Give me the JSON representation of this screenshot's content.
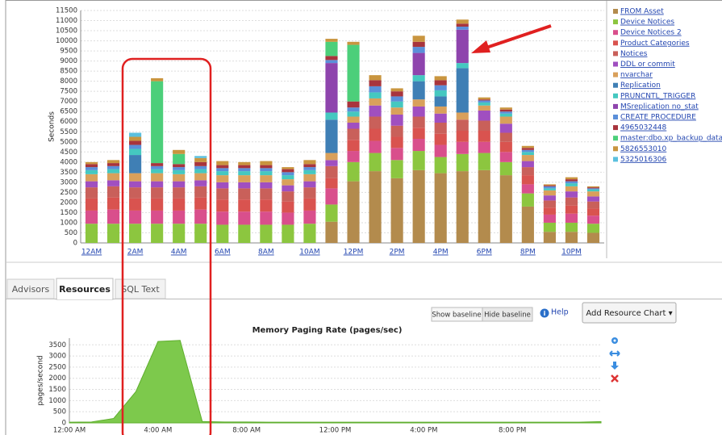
{
  "chart_data": [
    {
      "type": "bar",
      "stacked": true,
      "y_label": "Seconds",
      "categories": [
        "12AM",
        null,
        "2AM",
        null,
        "4AM",
        null,
        "6AM",
        null,
        "8AM",
        null,
        "10AM",
        null,
        "12PM",
        null,
        "2PM",
        null,
        "4PM",
        null,
        "6PM",
        null,
        "8PM",
        null,
        "10PM",
        null
      ],
      "ylim": [
        0,
        11500
      ],
      "yticks": [
        0,
        500,
        1000,
        1500,
        2000,
        2500,
        3000,
        3500,
        4000,
        4500,
        5000,
        5500,
        6000,
        6500,
        7000,
        7500,
        8000,
        8500,
        9000,
        9500,
        10000,
        10500,
        11000,
        11500
      ],
      "grid": true,
      "legend": "right",
      "series": [
        {
          "name": "FROM Asset",
          "color": "#b38b4d",
          "values": [
            0,
            0,
            0,
            0,
            0,
            0,
            0,
            0,
            0,
            0,
            0,
            1050,
            3050,
            3550,
            3200,
            3600,
            3450,
            3550,
            3600,
            3350,
            1800,
            550,
            550,
            500
          ]
        },
        {
          "name": "Device Notices",
          "color": "#8cc63f",
          "values": [
            950,
            950,
            950,
            950,
            950,
            950,
            900,
            900,
            900,
            900,
            950,
            850,
            950,
            900,
            900,
            950,
            800,
            850,
            850,
            650,
            650,
            450,
            450,
            450
          ]
        },
        {
          "name": "Device Notices 2",
          "color": "#d94f8c",
          "values": [
            650,
            700,
            650,
            650,
            650,
            700,
            650,
            650,
            650,
            600,
            650,
            800,
            550,
            600,
            600,
            600,
            600,
            600,
            550,
            500,
            450,
            400,
            450,
            400
          ]
        },
        {
          "name": "Product Categories",
          "color": "#d9534f",
          "values": [
            600,
            600,
            600,
            600,
            600,
            600,
            600,
            600,
            600,
            550,
            600,
            500,
            550,
            600,
            550,
            550,
            550,
            550,
            550,
            500,
            450,
            350,
            400,
            350
          ]
        },
        {
          "name": "Notices",
          "color": "#c9605a",
          "values": [
            550,
            550,
            550,
            550,
            550,
            550,
            550,
            550,
            550,
            500,
            550,
            600,
            550,
            600,
            550,
            550,
            550,
            550,
            500,
            450,
            400,
            350,
            400,
            350
          ]
        },
        {
          "name": "DDL or commit",
          "color": "#a04fc0",
          "values": [
            300,
            300,
            300,
            300,
            300,
            300,
            300,
            300,
            300,
            300,
            300,
            300,
            300,
            550,
            550,
            500,
            450,
            0,
            500,
            450,
            300,
            250,
            300,
            250
          ]
        },
        {
          "name": "nvarchar",
          "color": "#d9a05b",
          "values": [
            350,
            350,
            400,
            400,
            350,
            350,
            350,
            350,
            350,
            300,
            350,
            350,
            300,
            350,
            350,
            350,
            350,
            350,
            250,
            350,
            300,
            250,
            250,
            250
          ]
        },
        {
          "name": "Replication",
          "color": "#3f7fb5",
          "values": [
            0,
            0,
            900,
            0,
            0,
            0,
            0,
            0,
            0,
            0,
            0,
            1650,
            0,
            0,
            0,
            900,
            500,
            2200,
            0,
            0,
            0,
            0,
            0,
            0
          ]
        },
        {
          "name": "PRUNCNTL_TRIGGER",
          "color": "#45c8c0",
          "values": [
            200,
            200,
            300,
            200,
            200,
            200,
            200,
            200,
            200,
            200,
            200,
            350,
            250,
            300,
            300,
            300,
            300,
            250,
            150,
            150,
            150,
            100,
            150,
            100
          ]
        },
        {
          "name": "MSreplication no_stat",
          "color": "#8e44ad",
          "values": [
            0,
            0,
            0,
            0,
            0,
            0,
            0,
            0,
            0,
            0,
            0,
            2450,
            0,
            0,
            0,
            1100,
            0,
            1650,
            0,
            0,
            0,
            0,
            0,
            0
          ]
        },
        {
          "name": "CREATE PROCEDURE",
          "color": "#5b8fd9",
          "values": [
            150,
            150,
            200,
            150,
            150,
            150,
            150,
            150,
            150,
            150,
            150,
            150,
            200,
            300,
            250,
            300,
            250,
            150,
            100,
            100,
            100,
            100,
            100,
            50
          ]
        },
        {
          "name": "4965032448",
          "color": "#a8343d",
          "values": [
            150,
            150,
            200,
            150,
            150,
            200,
            150,
            150,
            150,
            150,
            150,
            200,
            300,
            300,
            250,
            250,
            250,
            150,
            50,
            100,
            100,
            50,
            100,
            50
          ]
        },
        {
          "name": "master:dbo.xp_backup_databa",
          "color": "#4ccf7a",
          "values": [
            0,
            0,
            0,
            4050,
            500,
            0,
            0,
            0,
            0,
            0,
            0,
            700,
            2800,
            0,
            0,
            0,
            0,
            0,
            0,
            0,
            0,
            0,
            0,
            0
          ]
        },
        {
          "name": "5826553010",
          "color": "#c9953f",
          "values": [
            100,
            150,
            200,
            150,
            200,
            200,
            200,
            150,
            200,
            100,
            200,
            150,
            150,
            250,
            150,
            300,
            200,
            200,
            100,
            100,
            100,
            50,
            100,
            50
          ]
        },
        {
          "name": "5325016306",
          "color": "#5bc0de",
          "values": [
            0,
            0,
            200,
            0,
            0,
            100,
            0,
            0,
            0,
            0,
            0,
            0,
            0,
            0,
            0,
            0,
            0,
            0,
            0,
            0,
            0,
            0,
            0,
            0
          ]
        }
      ]
    },
    {
      "type": "area",
      "title": "Memory Paging Rate (pages/sec)",
      "y_label": "pages/second",
      "color": "#7dc94c",
      "x": [
        0,
        1,
        2,
        3,
        4,
        5,
        6,
        7,
        8,
        9,
        10,
        11,
        12,
        13,
        14,
        15,
        16,
        17,
        18,
        19,
        20,
        21,
        22,
        23,
        24
      ],
      "values": [
        30,
        40,
        200,
        1400,
        3650,
        3700,
        60,
        40,
        40,
        30,
        30,
        30,
        30,
        30,
        30,
        30,
        30,
        30,
        30,
        30,
        30,
        30,
        30,
        30,
        60
      ],
      "xlim": [
        0,
        24
      ],
      "xticks": [
        {
          "value": 0,
          "label": "12:00 AM"
        },
        {
          "value": 4,
          "label": "4:00 AM"
        },
        {
          "value": 8,
          "label": "8:00 AM"
        },
        {
          "value": 12,
          "label": "12:00 PM"
        },
        {
          "value": 16,
          "label": "4:00 PM"
        },
        {
          "value": 20,
          "label": "8:00 PM"
        }
      ],
      "ylim": [
        0,
        3800
      ],
      "yticks": [
        0,
        500,
        1000,
        1500,
        2000,
        2500,
        3000,
        3500
      ],
      "grid": true
    }
  ],
  "tabs": [
    "Advisors",
    "Resources",
    "SQL Text"
  ],
  "baseline_buttons": [
    "Show baseline",
    "Hide baseline"
  ],
  "help": "Help",
  "add_chart_button": "Add Resource Chart ▾"
}
